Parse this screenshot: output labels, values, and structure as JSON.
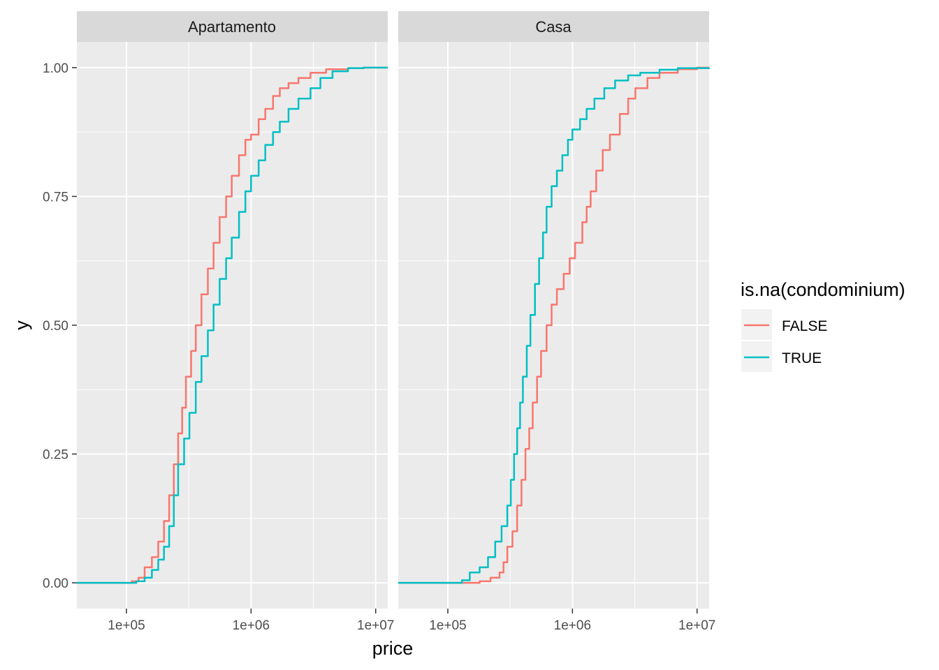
{
  "chart_data": {
    "type": "line",
    "subtype": "ecdf",
    "facet_by": "type",
    "xlabel": "price",
    "ylabel": "y",
    "x_scale": "log10",
    "xlim": [
      40000,
      12500000
    ],
    "ylim": [
      -0.05,
      1.05
    ],
    "x_ticks": [
      {
        "value": 100000,
        "label": "1e+05"
      },
      {
        "value": 1000000,
        "label": "1e+06"
      },
      {
        "value": 10000000,
        "label": "1e+07"
      }
    ],
    "y_ticks": [
      {
        "value": 0,
        "label": "0.00"
      },
      {
        "value": 0.25,
        "label": "0.25"
      },
      {
        "value": 0.5,
        "label": "0.50"
      },
      {
        "value": 0.75,
        "label": "0.75"
      },
      {
        "value": 1,
        "label": "1.00"
      }
    ],
    "grid": true,
    "legend": {
      "title": "is.na(condominium)",
      "placement": "right",
      "entries": [
        {
          "name": "FALSE",
          "color": "#F8766D"
        },
        {
          "name": "TRUE",
          "color": "#00BFC4"
        }
      ]
    },
    "panels": [
      {
        "title": "Apartamento",
        "series": [
          {
            "name": "FALSE",
            "color": "#F8766D",
            "points": [
              [
                40000,
                0
              ],
              [
                95000,
                0
              ],
              [
                110000,
                0.003
              ],
              [
                125000,
                0.01
              ],
              [
                140000,
                0.03
              ],
              [
                160000,
                0.05
              ],
              [
                180000,
                0.08
              ],
              [
                200000,
                0.12
              ],
              [
                220000,
                0.17
              ],
              [
                240000,
                0.23
              ],
              [
                260000,
                0.29
              ],
              [
                280000,
                0.34
              ],
              [
                300000,
                0.4
              ],
              [
                330000,
                0.45
              ],
              [
                360000,
                0.5
              ],
              [
                400000,
                0.56
              ],
              [
                450000,
                0.61
              ],
              [
                500000,
                0.66
              ],
              [
                560000,
                0.71
              ],
              [
                630000,
                0.75
              ],
              [
                700000,
                0.79
              ],
              [
                800000,
                0.83
              ],
              [
                900000,
                0.86
              ],
              [
                1000000,
                0.87
              ],
              [
                1150000,
                0.9
              ],
              [
                1300000,
                0.92
              ],
              [
                1500000,
                0.945
              ],
              [
                1700000,
                0.96
              ],
              [
                2000000,
                0.97
              ],
              [
                2400000,
                0.98
              ],
              [
                3000000,
                0.99
              ],
              [
                4000000,
                0.997
              ],
              [
                6000000,
                0.999
              ],
              [
                8000000,
                1
              ],
              [
                12500000,
                1
              ]
            ]
          },
          {
            "name": "TRUE",
            "color": "#00BFC4",
            "points": [
              [
                40000,
                0
              ],
              [
                100000,
                0
              ],
              [
                120000,
                0.003
              ],
              [
                140000,
                0.01
              ],
              [
                160000,
                0.025
              ],
              [
                180000,
                0.045
              ],
              [
                200000,
                0.07
              ],
              [
                220000,
                0.11
              ],
              [
                240000,
                0.17
              ],
              [
                260000,
                0.23
              ],
              [
                290000,
                0.28
              ],
              [
                320000,
                0.33
              ],
              [
                360000,
                0.39
              ],
              [
                400000,
                0.44
              ],
              [
                450000,
                0.49
              ],
              [
                500000,
                0.54
              ],
              [
                560000,
                0.59
              ],
              [
                630000,
                0.63
              ],
              [
                700000,
                0.67
              ],
              [
                800000,
                0.72
              ],
              [
                900000,
                0.76
              ],
              [
                1000000,
                0.79
              ],
              [
                1150000,
                0.82
              ],
              [
                1300000,
                0.85
              ],
              [
                1500000,
                0.875
              ],
              [
                1700000,
                0.895
              ],
              [
                2000000,
                0.92
              ],
              [
                2400000,
                0.94
              ],
              [
                3000000,
                0.96
              ],
              [
                3600000,
                0.98
              ],
              [
                4500000,
                0.993
              ],
              [
                6000000,
                0.999
              ],
              [
                8000000,
                1
              ],
              [
                12500000,
                1
              ]
            ]
          }
        ]
      },
      {
        "title": "Casa",
        "series": [
          {
            "name": "FALSE",
            "color": "#F8766D",
            "points": [
              [
                40000,
                0
              ],
              [
                150000,
                0
              ],
              [
                180000,
                0.003
              ],
              [
                220000,
                0.01
              ],
              [
                260000,
                0.02
              ],
              [
                280000,
                0.04
              ],
              [
                300000,
                0.07
              ],
              [
                330000,
                0.1
              ],
              [
                360000,
                0.15
              ],
              [
                390000,
                0.2
              ],
              [
                420000,
                0.26
              ],
              [
                450000,
                0.3
              ],
              [
                480000,
                0.35
              ],
              [
                520000,
                0.4
              ],
              [
                560000,
                0.45
              ],
              [
                620000,
                0.5
              ],
              [
                680000,
                0.54
              ],
              [
                750000,
                0.57
              ],
              [
                850000,
                0.6
              ],
              [
                950000,
                0.63
              ],
              [
                1050000,
                0.66
              ],
              [
                1200000,
                0.7
              ],
              [
                1300000,
                0.73
              ],
              [
                1400000,
                0.76
              ],
              [
                1550000,
                0.8
              ],
              [
                1750000,
                0.84
              ],
              [
                2000000,
                0.87
              ],
              [
                2400000,
                0.91
              ],
              [
                2800000,
                0.94
              ],
              [
                3200000,
                0.96
              ],
              [
                4000000,
                0.98
              ],
              [
                5000000,
                0.99
              ],
              [
                7000000,
                0.997
              ],
              [
                10000000,
                1
              ],
              [
                12500000,
                1
              ]
            ]
          },
          {
            "name": "TRUE",
            "color": "#00BFC4",
            "points": [
              [
                40000,
                0
              ],
              [
                120000,
                0
              ],
              [
                130000,
                0.005
              ],
              [
                150000,
                0.02
              ],
              [
                180000,
                0.03
              ],
              [
                210000,
                0.05
              ],
              [
                240000,
                0.08
              ],
              [
                270000,
                0.11
              ],
              [
                300000,
                0.15
              ],
              [
                320000,
                0.2
              ],
              [
                340000,
                0.25
              ],
              [
                360000,
                0.3
              ],
              [
                380000,
                0.35
              ],
              [
                400000,
                0.4
              ],
              [
                430000,
                0.46
              ],
              [
                460000,
                0.52
              ],
              [
                500000,
                0.58
              ],
              [
                540000,
                0.63
              ],
              [
                580000,
                0.68
              ],
              [
                620000,
                0.73
              ],
              [
                680000,
                0.77
              ],
              [
                750000,
                0.8
              ],
              [
                830000,
                0.83
              ],
              [
                920000,
                0.86
              ],
              [
                1000000,
                0.88
              ],
              [
                1150000,
                0.9
              ],
              [
                1300000,
                0.92
              ],
              [
                1500000,
                0.94
              ],
              [
                1800000,
                0.96
              ],
              [
                2200000,
                0.975
              ],
              [
                2800000,
                0.985
              ],
              [
                3500000,
                0.99
              ],
              [
                5000000,
                0.996
              ],
              [
                7000000,
                0.999
              ],
              [
                12500000,
                1
              ]
            ]
          }
        ]
      }
    ]
  }
}
